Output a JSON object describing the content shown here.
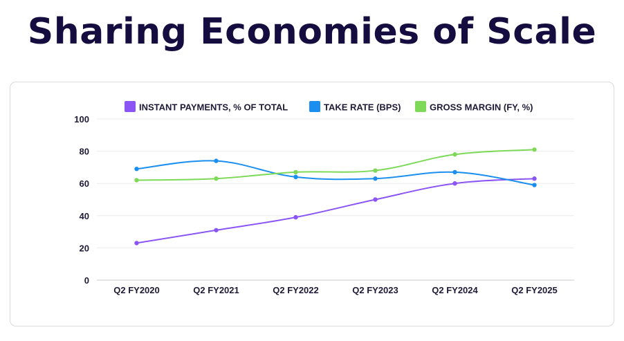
{
  "title": "Sharing Economies of Scale",
  "chart_data": {
    "type": "line",
    "categories": [
      "Q2 FY2020",
      "Q2 FY2021",
      "Q2 FY2022",
      "Q2 FY2023",
      "Q2 FY2024",
      "Q2 FY2025"
    ],
    "series": [
      {
        "name": "INSTANT PAYMENTS, % OF TOTAL",
        "color": "#8b55f6",
        "values": [
          23,
          31,
          39,
          50,
          60,
          63
        ]
      },
      {
        "name": "TAKE RATE (BPS)",
        "color": "#1a8ff0",
        "values": [
          69,
          74,
          64,
          63,
          67,
          59
        ]
      },
      {
        "name": "GROSS MARGIN (FY, %)",
        "color": "#7dd957",
        "values": [
          62,
          63,
          67,
          68,
          78,
          81
        ]
      }
    ],
    "yticks": [
      0,
      20,
      40,
      60,
      80,
      100
    ],
    "ylim": [
      0,
      100
    ],
    "xlabel": "",
    "ylabel": "",
    "legend": "top",
    "grid": true
  }
}
